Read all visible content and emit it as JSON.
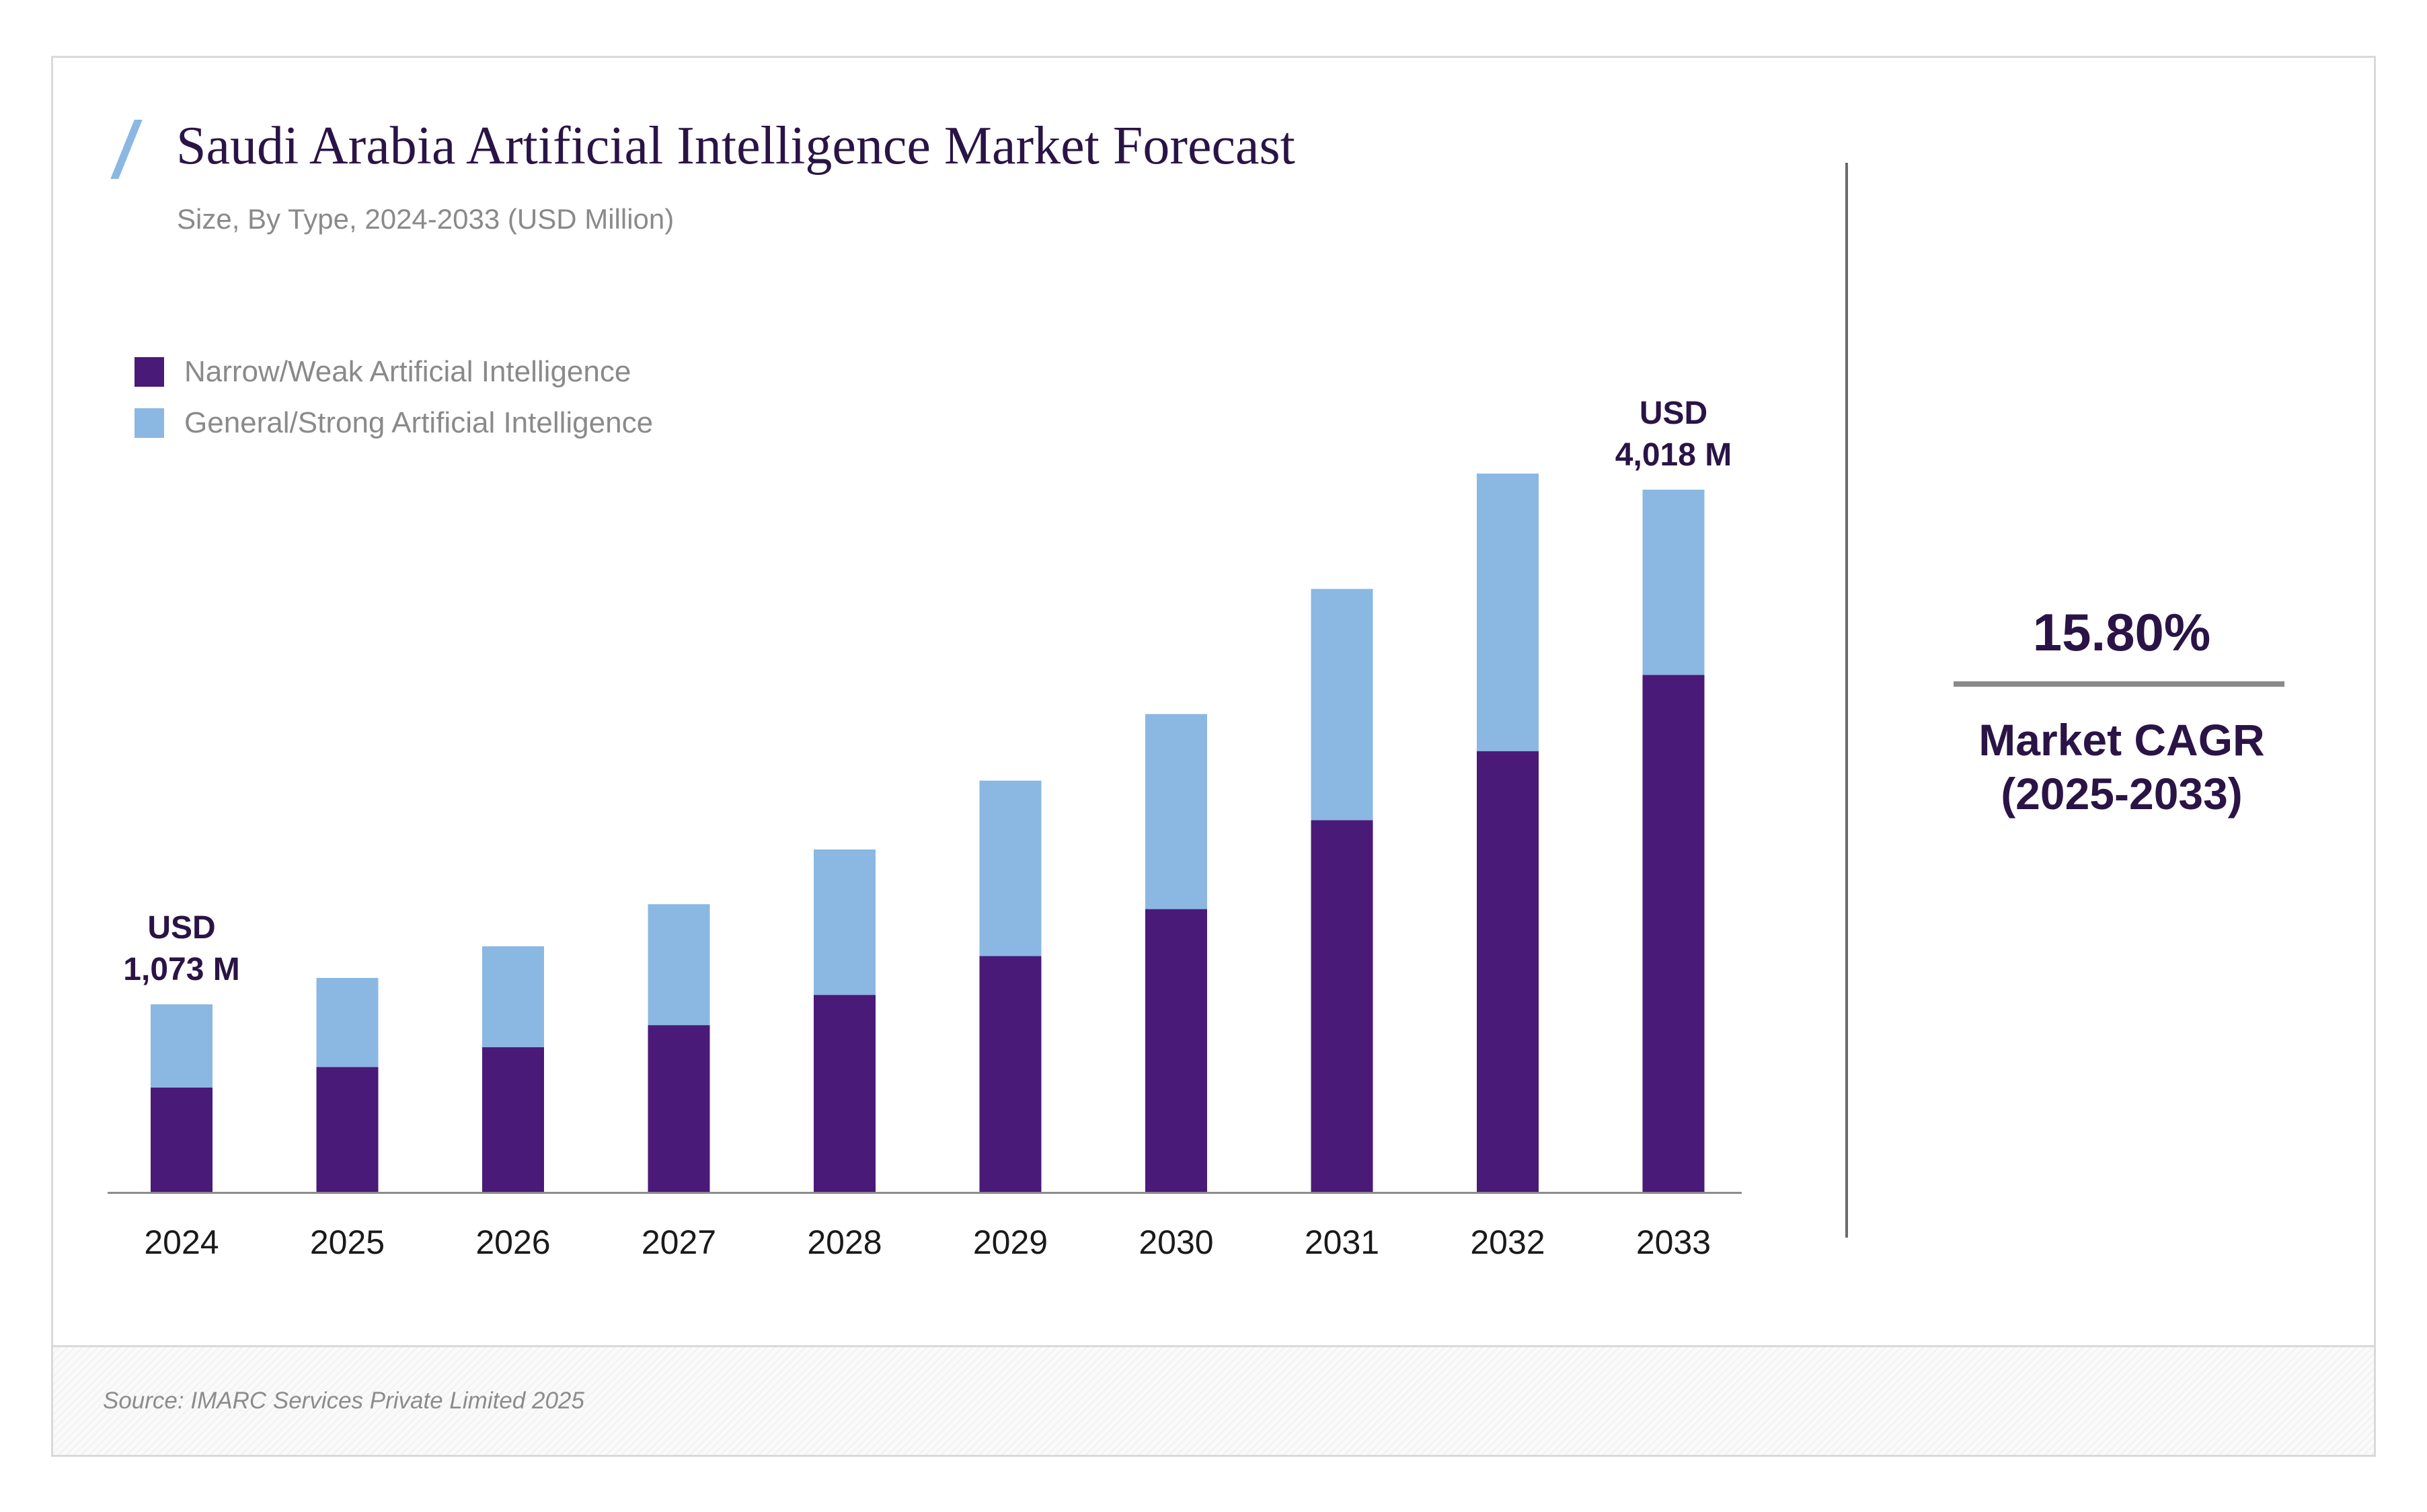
{
  "title": "Saudi Arabia Artificial Intelligence Market Forecast",
  "subtitle": "Size, By Type, 2024-2033 (USD Million)",
  "legend": {
    "items": [
      {
        "label": "Narrow/Weak Artificial Intelligence",
        "color": "#4a1a78"
      },
      {
        "label": "General/Strong Artificial Intelligence",
        "color": "#8ab8e2"
      }
    ],
    "placement": "top-left"
  },
  "cagr": {
    "value": "15.80%",
    "label_line1": "Market CAGR",
    "label_line2": "(2025-2033)"
  },
  "source": "Source: IMARC Services Private Limited 2025",
  "annotations": {
    "first": {
      "line1": "USD",
      "line2": "1,073 M"
    },
    "last": {
      "line1": "USD",
      "line2": "4,018 M"
    }
  },
  "chart_data": {
    "type": "bar",
    "stacked": true,
    "title": "Saudi Arabia Artificial Intelligence Market Forecast",
    "subtitle": "Size, By Type, 2024-2033 (USD Million)",
    "xlabel": "",
    "ylabel": "",
    "categories": [
      "2024",
      "2025",
      "2026",
      "2027",
      "2028",
      "2029",
      "2030",
      "2031",
      "2032",
      "2033"
    ],
    "series": [
      {
        "name": "Narrow/Weak Artificial Intelligence",
        "color": "#4a1a78",
        "values": [
          597,
          714,
          828,
          954,
          1127,
          1349,
          1618,
          2127,
          2522,
          2958
        ]
      },
      {
        "name": "General/Strong Artificial Intelligence",
        "color": "#8ab8e2",
        "values": [
          476,
          510,
          577,
          692,
          832,
          1004,
          1116,
          1323,
          1588,
          1060
        ]
      }
    ],
    "totals_labeled": [
      {
        "category": "2024",
        "text": "USD 1,073 M"
      },
      {
        "category": "2033",
        "text": "USD 4,018 M"
      }
    ],
    "ylim": [
      0,
      4018
    ],
    "grid": false,
    "y_axis_visible": false
  }
}
